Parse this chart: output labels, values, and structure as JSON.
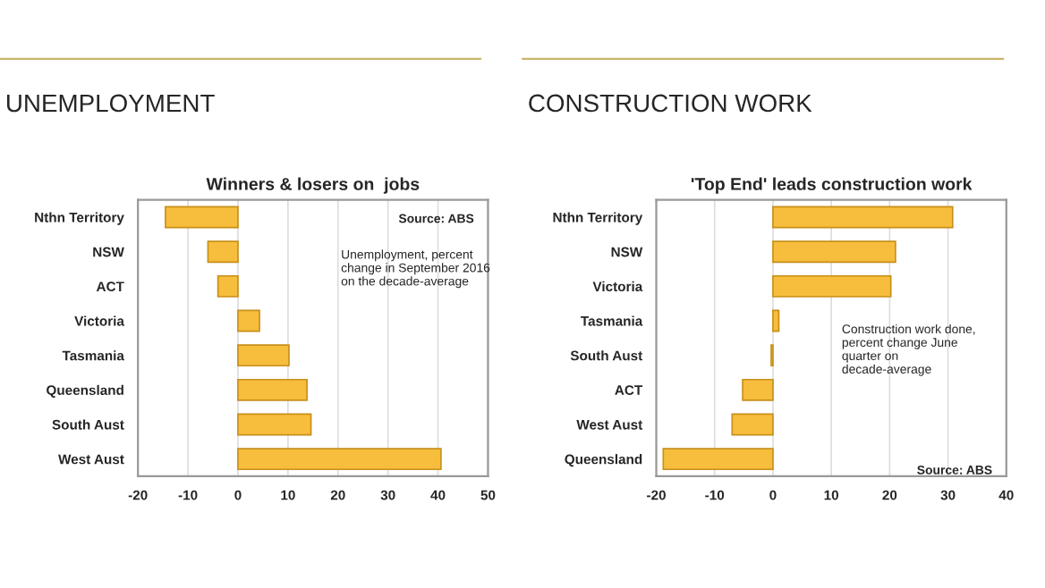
{
  "chart_data": [
    {
      "type": "bar",
      "orientation": "horizontal",
      "title": "UNEMPLOYMENT",
      "subtitle": "Winners & losers on  jobs",
      "categories": [
        "Nthn Territory",
        "NSW",
        "ACT",
        "Victoria",
        "Tasmania",
        "Queensland",
        "South Aust",
        "West Aust"
      ],
      "values": [
        -14.5,
        -6,
        -4,
        4.3,
        10.2,
        13.8,
        14.6,
        40.6
      ],
      "color": "#f7bd3c",
      "xlim": [
        -20,
        50
      ],
      "xticks": [
        -20,
        -10,
        0,
        10,
        20,
        30,
        40,
        50
      ],
      "grid": "x",
      "annotations": [
        "Source: ABS",
        "Unemployment, percent\nchange in September 2016\non the decade-average"
      ]
    },
    {
      "type": "bar",
      "orientation": "horizontal",
      "title": "CONSTRUCTION WORK",
      "subtitle": "'Top End' leads construction work",
      "categories": [
        "Nthn Territory",
        "NSW",
        "Victoria",
        "Tasmania",
        "South Aust",
        "ACT",
        "West Aust",
        "Queensland"
      ],
      "values": [
        30.8,
        21,
        20.2,
        1,
        -0.3,
        -5.2,
        -7,
        -18.8
      ],
      "color": "#f7bd3c",
      "xlim": [
        -20,
        40
      ],
      "xticks": [
        -20,
        -10,
        0,
        10,
        20,
        30,
        40
      ],
      "grid": "x",
      "annotations": [
        "Construction work done,\npercent change June\nquarter on\ndecade-average",
        "Source: ABS"
      ]
    }
  ]
}
